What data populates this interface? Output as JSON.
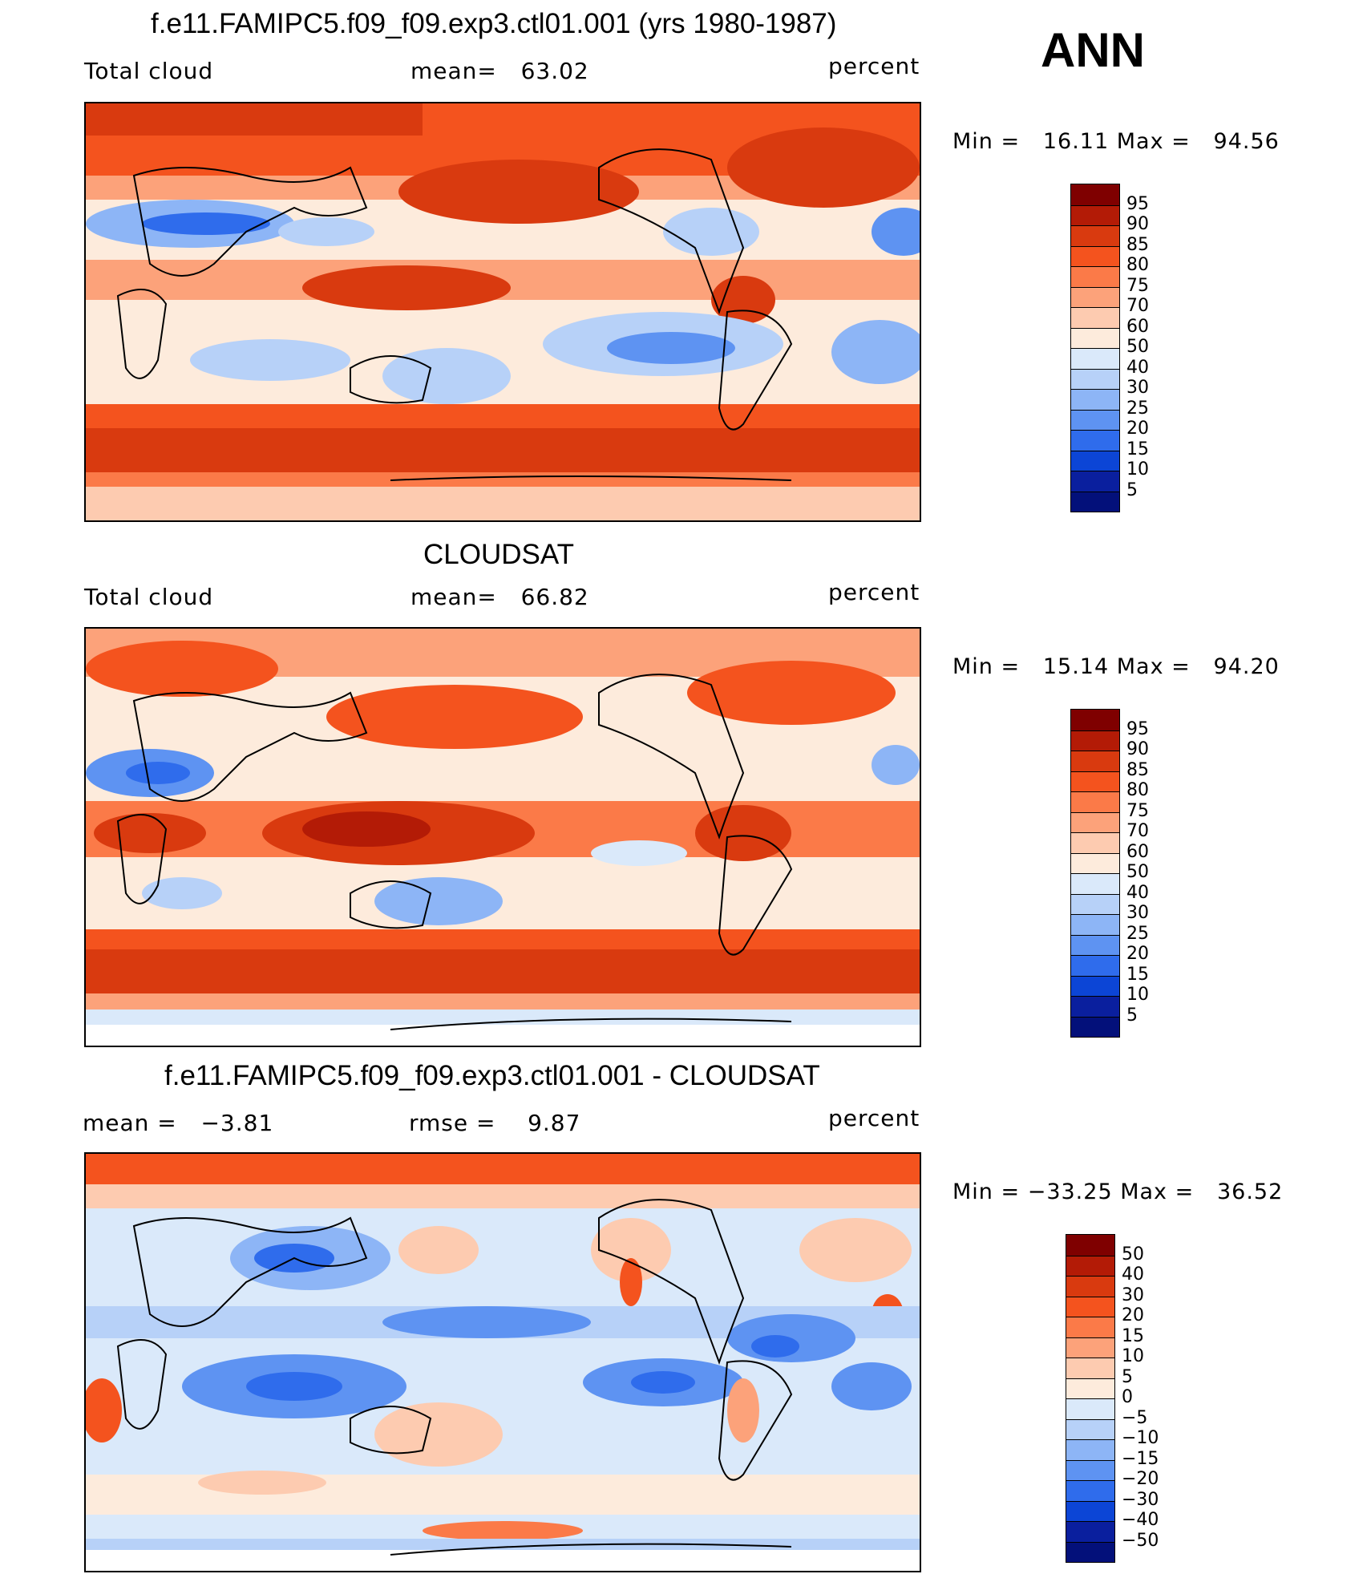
{
  "season": "ANN",
  "panels": [
    {
      "title": "f.e11.FAMIPC5.f09_f09.exp3.ctl01.001 (yrs 1980-1987)",
      "left_label": "Total cloud",
      "center_label": "mean=   63.02",
      "right_label": "percent",
      "minmax": "Min =   16.11 Max =   94.56",
      "colorbar_labels": [
        "95",
        "90",
        "85",
        "80",
        "75",
        "70",
        "60",
        "50",
        "40",
        "30",
        "25",
        "20",
        "15",
        "10",
        "5"
      ]
    },
    {
      "title": "CLOUDSAT",
      "left_label": "Total cloud",
      "center_label": "mean=   66.82",
      "right_label": "percent",
      "minmax": "Min =   15.14 Max =   94.20",
      "colorbar_labels": [
        "95",
        "90",
        "85",
        "80",
        "75",
        "70",
        "60",
        "50",
        "40",
        "30",
        "25",
        "20",
        "15",
        "10",
        "5"
      ]
    },
    {
      "title": "f.e11.FAMIPC5.f09_f09.exp3.ctl01.001 - CLOUDSAT",
      "left_label": "mean =   −3.81",
      "center_label": "rmse =    9.87",
      "right_label": "percent",
      "minmax": "Min = −33.25 Max =   36.52",
      "colorbar_labels": [
        "50",
        "40",
        "30",
        "20",
        "15",
        "10",
        "5",
        "0",
        "−5",
        "−10",
        "−15",
        "−20",
        "−30",
        "−40",
        "−50"
      ]
    }
  ],
  "colors": {
    "scale": [
      "#7f0000",
      "#b31b06",
      "#d93a0f",
      "#f4531e",
      "#fb7a48",
      "#fca27a",
      "#fdcbb0",
      "#fdebdc",
      "#dae9fa",
      "#b7d1f8",
      "#8db5f6",
      "#5e93f2",
      "#2f6cec",
      "#0c45d6",
      "#0a1f9e",
      "#03107a"
    ]
  }
}
